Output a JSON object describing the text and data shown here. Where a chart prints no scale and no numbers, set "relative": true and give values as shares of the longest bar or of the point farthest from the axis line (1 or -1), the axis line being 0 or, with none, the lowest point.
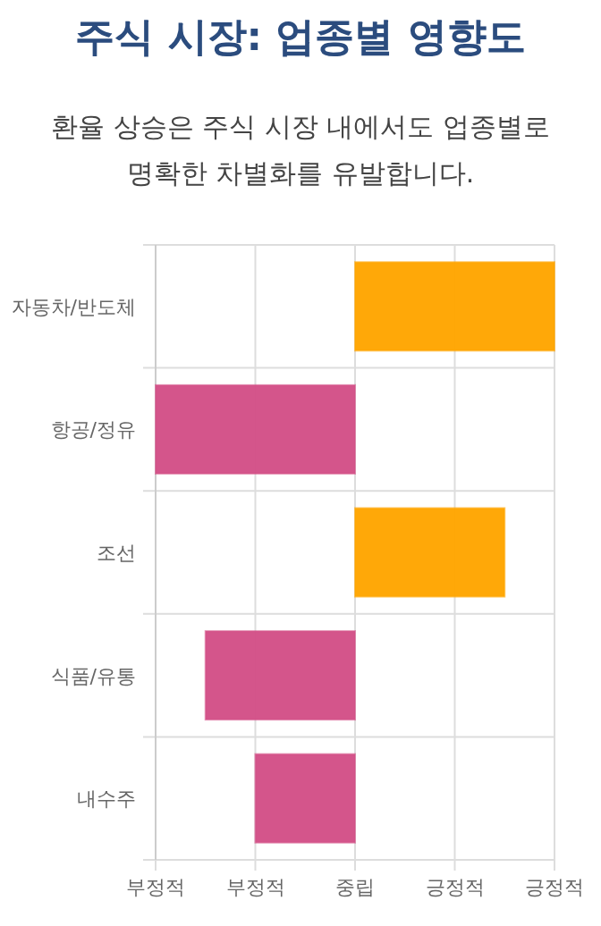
{
  "chart_data": {
    "type": "bar",
    "orientation": "horizontal",
    "relative": true,
    "title": "주식 시장: 업종별 영향도",
    "subtitle": "환율 상승은 주식 시장 내에서도 업종별로 명확한 차별화를 유발합니다.",
    "categories": [
      "자동차/반도체",
      "항공/정유",
      "조선",
      "식품/유통",
      "내수주"
    ],
    "values": [
      1,
      -1,
      0.75,
      -0.75,
      -0.5
    ],
    "colors": [
      "#ffa500",
      "#d35087",
      "#ffa500",
      "#d35087",
      "#d35087"
    ],
    "annotations": [
      "부정적",
      "부정적",
      "중립",
      "긍정적",
      "긍정적"
    ],
    "grid": true
  }
}
